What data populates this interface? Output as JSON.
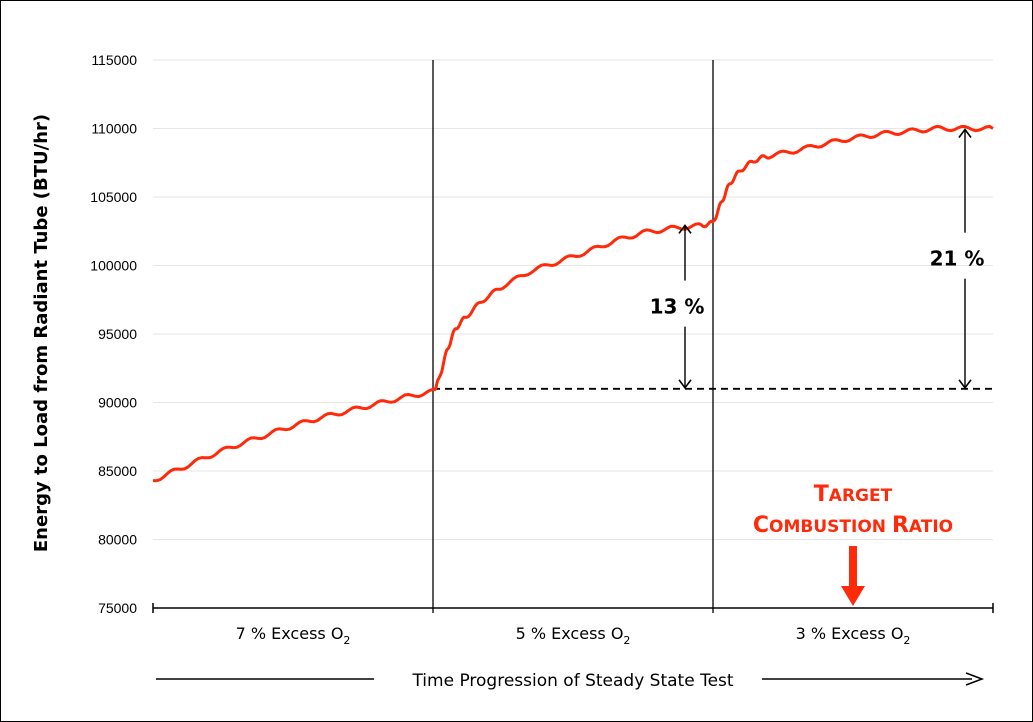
{
  "chart_data": {
    "type": "line",
    "ylabel": "Energy to Load from Radiant Tube (BTU/hr)",
    "xlabel": "Time Progression of Steady State Test",
    "ylim": [
      75000,
      115000
    ],
    "yticks": [
      75000,
      80000,
      85000,
      90000,
      95000,
      100000,
      105000,
      110000,
      115000
    ],
    "ytick_labels": [
      "75000",
      "80000",
      "85000",
      "90000",
      "95000",
      "100000",
      "105000",
      "110000",
      "115000"
    ],
    "grid": true,
    "xlim": [
      0,
      3
    ],
    "segments": [
      {
        "label_main": "7 % Excess O",
        "label_sub": "2"
      },
      {
        "label_main": "5 % Excess O",
        "label_sub": "2"
      },
      {
        "label_main": "3 % Excess O",
        "label_sub": "2"
      }
    ],
    "series": [
      {
        "color": "#ff2a0a",
        "x": [
          0,
          0.1,
          0.2,
          0.3,
          0.4,
          0.5,
          0.6,
          0.7,
          0.8,
          0.9,
          1.0,
          1.02,
          1.05,
          1.08,
          1.12,
          1.18,
          1.25,
          1.35,
          1.45,
          1.55,
          1.65,
          1.75,
          1.85,
          1.95,
          2.0,
          2.03,
          2.06,
          2.1,
          2.15,
          2.2,
          2.3,
          2.4,
          2.5,
          2.6,
          2.7,
          2.8,
          2.9,
          3.0
        ],
        "y": [
          84300,
          85200,
          86100,
          86900,
          87600,
          88300,
          88900,
          89400,
          89900,
          90400,
          90800,
          91600,
          93800,
          95400,
          96300,
          97500,
          98500,
          99600,
          100300,
          101000,
          101800,
          102400,
          102700,
          102900,
          103100,
          104600,
          106000,
          107000,
          107700,
          108000,
          108400,
          108900,
          109300,
          109600,
          109800,
          110000,
          110000,
          110000
        ]
      }
    ],
    "baseline": {
      "y": 91000,
      "x_start": 1.0,
      "x_end": 3.0
    },
    "annotations": [
      {
        "text": "13 %",
        "x": 1.9,
        "y_from": 91000,
        "y_to": 103000
      },
      {
        "text": "21 %",
        "x": 2.9,
        "y_from": 91000,
        "y_to": 110000
      }
    ],
    "target": {
      "line1": {
        "big": "T",
        "small": "ARGET"
      },
      "line2_a": {
        "big": "C",
        "small": "OMBUSTION "
      },
      "line2_b": {
        "big": "R",
        "small": "ATIO"
      },
      "x": 2.5
    }
  }
}
